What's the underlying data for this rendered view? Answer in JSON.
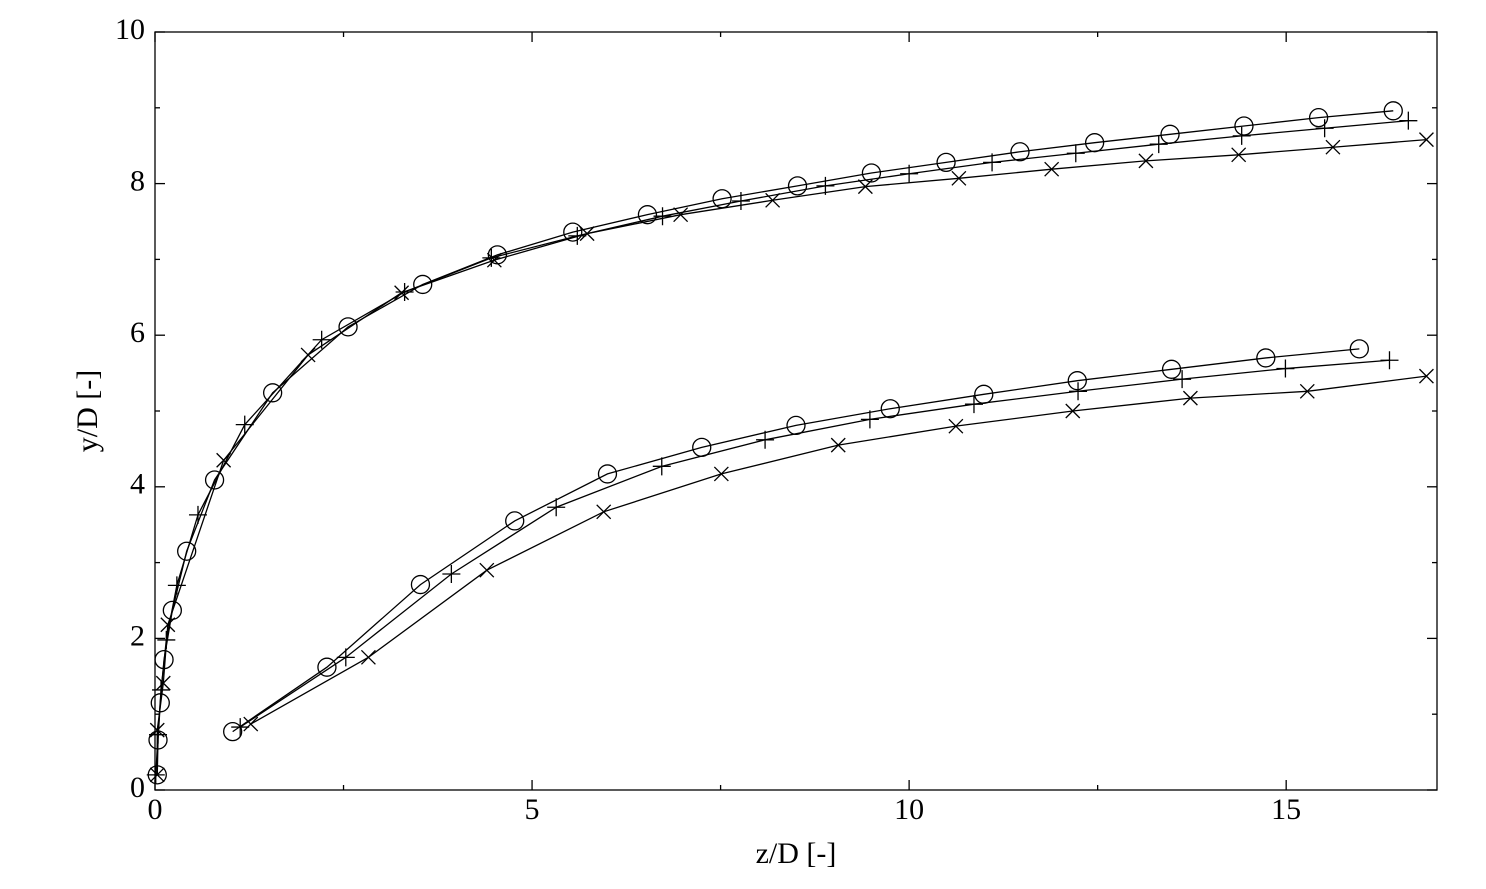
{
  "chart_data": {
    "type": "line",
    "xlabel": "z/D [-]",
    "ylabel": "y/D [-]",
    "xlim": [
      0,
      17
    ],
    "xticks": [
      0,
      5,
      10,
      15
    ],
    "ylim": [
      0,
      10
    ],
    "yticks": [
      0,
      2,
      4,
      6,
      8,
      10
    ],
    "series": [
      {
        "marker": "circle",
        "color": "#000000",
        "x": [
          0.03,
          0.04,
          0.07,
          0.12,
          0.23,
          0.42,
          0.79,
          1.56,
          2.56,
          3.55,
          4.54,
          5.54,
          6.53,
          7.52,
          8.52,
          9.5,
          10.49,
          11.47,
          12.46,
          13.46,
          14.44,
          15.43,
          16.42
        ],
        "values": [
          0.2,
          0.66,
          1.15,
          1.72,
          2.37,
          3.15,
          4.09,
          5.24,
          6.11,
          6.67,
          7.06,
          7.36,
          7.59,
          7.8,
          7.97,
          8.14,
          8.28,
          8.42,
          8.54,
          8.65,
          8.76,
          8.87,
          8.96
        ]
      },
      {
        "marker": "plus",
        "color": "#000000",
        "x": [
          0.01,
          0.04,
          0.08,
          0.15,
          0.29,
          0.57,
          1.19,
          2.21,
          3.31,
          4.46,
          5.6,
          6.73,
          7.77,
          8.89,
          10.0,
          11.1,
          12.21,
          13.31,
          14.41,
          15.51,
          16.62
        ],
        "values": [
          0.2,
          0.73,
          1.32,
          1.98,
          2.7,
          3.63,
          4.82,
          5.94,
          6.57,
          7.02,
          7.31,
          7.57,
          7.77,
          7.97,
          8.13,
          8.28,
          8.4,
          8.52,
          8.63,
          8.73,
          8.83
        ]
      },
      {
        "marker": "x",
        "color": "#000000",
        "x": [
          0.03,
          0.03,
          0.11,
          0.17,
          0.91,
          2.03,
          3.27,
          4.5,
          5.73,
          6.97,
          8.19,
          9.42,
          10.66,
          11.89,
          13.14,
          14.37,
          15.62,
          16.86
        ],
        "values": [
          0.2,
          0.79,
          1.41,
          2.18,
          4.35,
          5.74,
          6.56,
          6.99,
          7.34,
          7.59,
          7.78,
          7.96,
          8.07,
          8.19,
          8.3,
          8.38,
          8.48,
          8.58
        ]
      },
      {
        "marker": "circle",
        "color": "#000000",
        "x": [
          1.03,
          2.28,
          3.52,
          4.77,
          6.0,
          7.25,
          8.5,
          9.75,
          10.99,
          12.23,
          13.48,
          14.73,
          15.97
        ],
        "values": [
          0.77,
          1.62,
          2.71,
          3.55,
          4.17,
          4.52,
          4.81,
          5.03,
          5.22,
          5.4,
          5.55,
          5.7,
          5.82
        ]
      },
      {
        "marker": "plus",
        "color": "#000000",
        "x": [
          1.13,
          2.53,
          3.93,
          5.32,
          6.72,
          8.09,
          9.48,
          10.86,
          12.24,
          13.62,
          14.99,
          16.37
        ],
        "values": [
          0.83,
          1.75,
          2.85,
          3.73,
          4.27,
          4.62,
          4.89,
          5.09,
          5.26,
          5.42,
          5.56,
          5.67
        ]
      },
      {
        "marker": "x",
        "color": "#000000",
        "x": [
          1.27,
          2.83,
          4.4,
          5.95,
          7.51,
          9.06,
          10.62,
          12.17,
          13.73,
          15.28,
          16.86
        ],
        "values": [
          0.87,
          1.75,
          2.9,
          3.67,
          4.17,
          4.55,
          4.8,
          5.0,
          5.17,
          5.26,
          5.46
        ]
      }
    ]
  }
}
